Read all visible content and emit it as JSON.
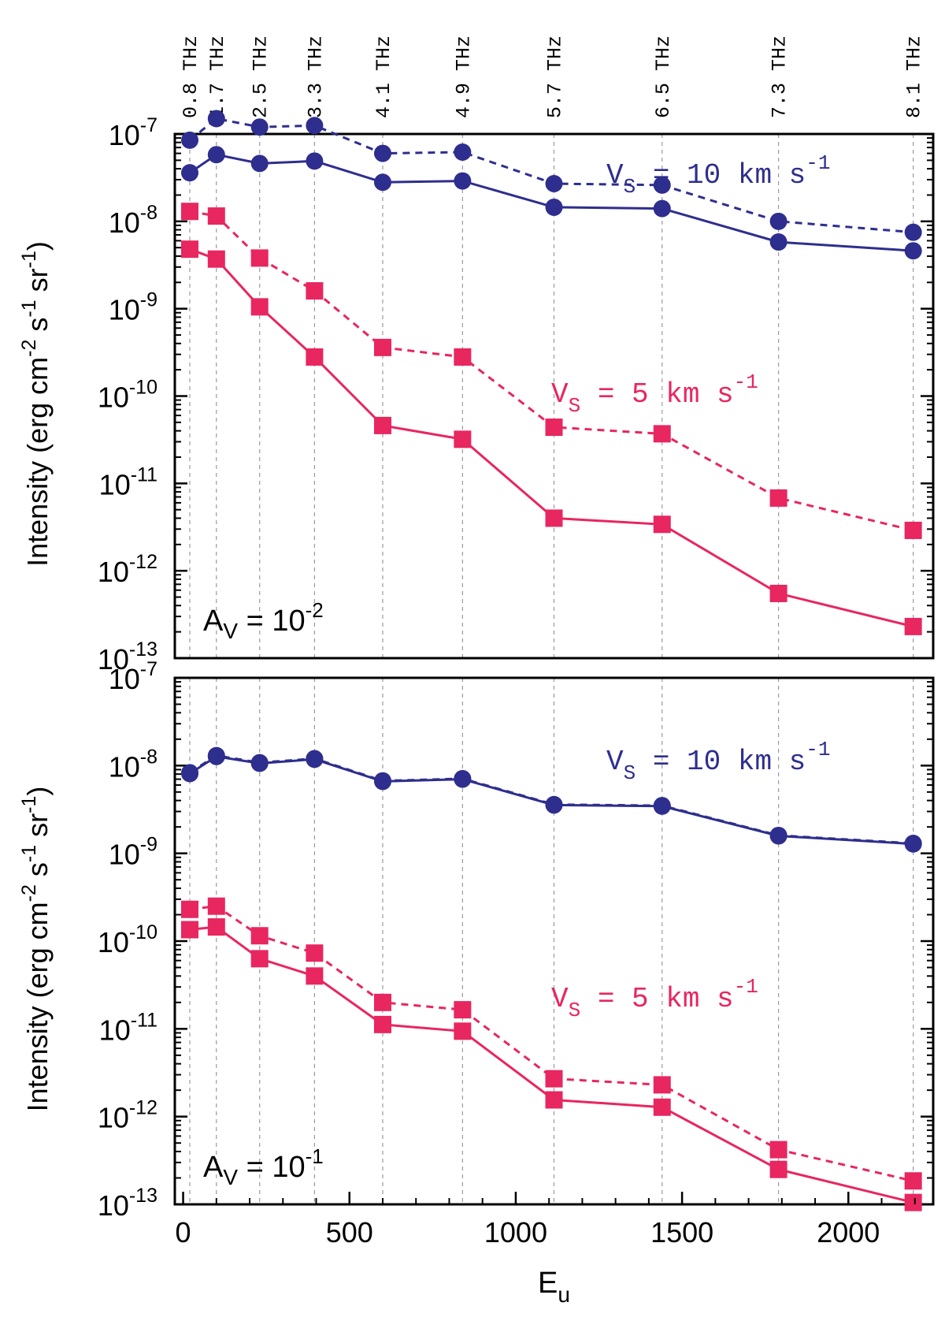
{
  "chart_data": [
    {
      "type": "line",
      "panel": "top",
      "panel_label": {
        "base": "A",
        "sub": "V",
        "eq": " = 10",
        "sup": "-2"
      },
      "ylabel": {
        "text": "Intensity (erg cm",
        "s1": "-2",
        "t2": " s",
        "s2": "-1",
        "t3": " sr",
        "s3": "-1",
        "t4": ")"
      },
      "yscale": "log",
      "ylim_exp": [
        -13,
        -7
      ],
      "ytick_exponents": [
        "-13",
        "-12",
        "-11",
        "-10",
        "-9",
        "-8",
        "-7"
      ],
      "xlim": [
        -25,
        2255
      ],
      "x": [
        20,
        100,
        230,
        395,
        600,
        840,
        1115,
        1440,
        1790,
        2195
      ],
      "series": [
        {
          "group": "Vs10",
          "style": "dashed",
          "marker": "circle",
          "color": "#2e2e8e",
          "values": [
            8.5e-08,
            1.5e-07,
            1.2e-07,
            1.25e-07,
            6e-08,
            6.2e-08,
            2.7e-08,
            2.6e-08,
            1e-08,
            7.5e-09
          ]
        },
        {
          "group": "Vs10",
          "style": "solid",
          "marker": "circle",
          "color": "#2e2e8e",
          "values": [
            3.6e-08,
            5.8e-08,
            4.6e-08,
            4.9e-08,
            2.8e-08,
            2.9e-08,
            1.45e-08,
            1.4e-08,
            5.8e-09,
            4.6e-09
          ]
        },
        {
          "group": "Vs5",
          "style": "dashed",
          "marker": "square",
          "color": "#e8265f",
          "values": [
            1.3e-08,
            1.15e-08,
            3.8e-09,
            1.6e-09,
            3.6e-10,
            2.8e-10,
            4.4e-11,
            3.7e-11,
            6.8e-12,
            2.9e-12
          ]
        },
        {
          "group": "Vs5",
          "style": "solid",
          "marker": "square",
          "color": "#e8265f",
          "values": [
            4.8e-09,
            3.7e-09,
            1.05e-09,
            2.8e-10,
            4.6e-11,
            3.2e-11,
            4e-12,
            3.4e-12,
            5.5e-13,
            2.3e-13
          ]
        }
      ],
      "annotations": [
        {
          "color": "#2e2e8e",
          "text": "V",
          "sub": "S",
          "rest": " = 10 km s",
          "sup": "-1"
        },
        {
          "color": "#e8265f",
          "text": "V",
          "sub": "S",
          "rest": " = 5 km s",
          "sup": "-1"
        }
      ]
    },
    {
      "type": "line",
      "panel": "bottom",
      "panel_label": {
        "base": "A",
        "sub": "V",
        "eq": " = 10",
        "sup": "-1"
      },
      "ylabel": {
        "text": "Intensity (erg cm",
        "s1": "-2",
        "t2": " s",
        "s2": "-1",
        "t3": " sr",
        "s3": "-1",
        "t4": ")"
      },
      "yscale": "log",
      "ylim_exp": [
        -13,
        -7
      ],
      "ytick_exponents": [
        "-13",
        "-12",
        "-11",
        "-10",
        "-9",
        "-8",
        "-7"
      ],
      "xlim": [
        -25,
        2255
      ],
      "x": [
        20,
        100,
        230,
        395,
        600,
        840,
        1115,
        1440,
        1790,
        2195
      ],
      "xlabel": {
        "base": "E",
        "sub": "u"
      },
      "xtick_labels": [
        "0",
        "500",
        "1000",
        "1500",
        "2000"
      ],
      "xticks": [
        0,
        500,
        1000,
        1500,
        2000
      ],
      "series": [
        {
          "group": "Vs10",
          "style": "dashed",
          "marker": "circle",
          "color": "#2e2e8e",
          "values": [
            8.3e-09,
            1.3e-08,
            1.08e-08,
            1.2e-08,
            6.7e-09,
            7.1e-09,
            3.6e-09,
            3.5e-09,
            1.6e-09,
            1.3e-09
          ]
        },
        {
          "group": "Vs10",
          "style": "solid",
          "marker": "circle",
          "color": "#2e2e8e",
          "values": [
            8.1e-09,
            1.27e-08,
            1.06e-08,
            1.18e-08,
            6.6e-09,
            7e-09,
            3.55e-09,
            3.45e-09,
            1.58e-09,
            1.28e-09
          ]
        },
        {
          "group": "Vs5",
          "style": "dashed",
          "marker": "square",
          "color": "#e8265f",
          "values": [
            2.3e-10,
            2.5e-10,
            1.15e-10,
            7.3e-11,
            2e-11,
            1.65e-11,
            2.7e-12,
            2.3e-12,
            4.2e-13,
            1.85e-13
          ]
        },
        {
          "group": "Vs5",
          "style": "solid",
          "marker": "square",
          "color": "#e8265f",
          "values": [
            1.35e-10,
            1.45e-10,
            6.3e-11,
            4e-11,
            1.12e-11,
            9.4e-12,
            1.55e-12,
            1.28e-12,
            2.5e-13,
            1.05e-13
          ]
        }
      ],
      "annotations": [
        {
          "color": "#2e2e8e",
          "text": "V",
          "sub": "S",
          "rest": " = 10 km s",
          "sup": "-1"
        },
        {
          "color": "#e8265f",
          "text": "V",
          "sub": "S",
          "rest": " = 5 km s",
          "sup": "-1"
        }
      ]
    }
  ],
  "top_axis": {
    "labels": [
      "0.8 THz",
      "1.7 THz",
      "2.5 THz",
      "3.3 THz",
      "4.1 THz",
      "4.9 THz",
      "5.7 THz",
      "6.5 THz",
      "7.3 THz",
      "8.1 THz"
    ]
  },
  "tick_base": "10"
}
